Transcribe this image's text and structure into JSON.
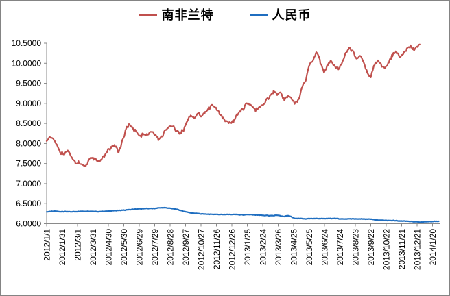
{
  "style": {
    "background": "#FFFFFF",
    "border_color": "#848484",
    "axis_color": "#8A8A8A",
    "text_color": "#000000",
    "series_red": "#C0504D",
    "series_blue": "#1F6EC0"
  },
  "legend": {
    "items": [
      {
        "label": "南非兰特",
        "color": "#C0504D"
      },
      {
        "label": "人民币",
        "color": "#1F6EC0"
      }
    ]
  },
  "chart_data": {
    "type": "line",
    "title": "",
    "legend_position": "top",
    "grid": false,
    "ylim": [
      6.0,
      10.5
    ],
    "y_tick_step": 0.5,
    "y_tick_labels": [
      "10.5000",
      "10.0000",
      "9.5000",
      "9.0000",
      "8.5000",
      "8.0000",
      "7.5000",
      "7.0000",
      "6.5000",
      "6.0000"
    ],
    "x_tick_labels": [
      "2012/1/1",
      "2012/1/31",
      "2012/3/1",
      "2012/3/31",
      "2012/4/30",
      "2012/5/30",
      "2012/6/29",
      "2012/7/29",
      "2012/8/28",
      "2012/9/27",
      "2012/10/27",
      "2012/11/26",
      "2012/12/26",
      "2013/1/25",
      "2013/2/24",
      "2013/3/26",
      "2013/4/25",
      "2013/5/25",
      "2013/6/24",
      "2013/7/24",
      "2013/8/23",
      "2013/9/22",
      "2013/10/22",
      "2013/11/21",
      "2013/12/21",
      "2014/1/20"
    ],
    "x_days_per_tick": 30,
    "x_unit": "days since 2012/1/1",
    "series": [
      {
        "name": "南非兰特",
        "color": "#C0504D",
        "points": [
          [
            0,
            8.1
          ],
          [
            7,
            8.17
          ],
          [
            14,
            8.06
          ],
          [
            21,
            7.93
          ],
          [
            28,
            7.76
          ],
          [
            35,
            7.74
          ],
          [
            42,
            7.8
          ],
          [
            49,
            7.68
          ],
          [
            56,
            7.5
          ],
          [
            63,
            7.54
          ],
          [
            70,
            7.48
          ],
          [
            77,
            7.46
          ],
          [
            84,
            7.66
          ],
          [
            91,
            7.62
          ],
          [
            98,
            7.6
          ],
          [
            105,
            7.56
          ],
          [
            112,
            7.7
          ],
          [
            119,
            7.82
          ],
          [
            126,
            7.91
          ],
          [
            133,
            7.95
          ],
          [
            140,
            7.78
          ],
          [
            147,
            8.05
          ],
          [
            154,
            8.35
          ],
          [
            161,
            8.47
          ],
          [
            168,
            8.37
          ],
          [
            175,
            8.28
          ],
          [
            182,
            8.18
          ],
          [
            189,
            8.25
          ],
          [
            196,
            8.23
          ],
          [
            203,
            8.3
          ],
          [
            210,
            8.22
          ],
          [
            217,
            8.11
          ],
          [
            224,
            8.17
          ],
          [
            231,
            8.33
          ],
          [
            238,
            8.41
          ],
          [
            245,
            8.44
          ],
          [
            252,
            8.29
          ],
          [
            259,
            8.26
          ],
          [
            266,
            8.34
          ],
          [
            273,
            8.56
          ],
          [
            280,
            8.71
          ],
          [
            287,
            8.64
          ],
          [
            294,
            8.74
          ],
          [
            301,
            8.69
          ],
          [
            308,
            8.77
          ],
          [
            315,
            8.87
          ],
          [
            322,
            8.94
          ],
          [
            329,
            8.87
          ],
          [
            336,
            8.74
          ],
          [
            343,
            8.62
          ],
          [
            350,
            8.54
          ],
          [
            357,
            8.5
          ],
          [
            364,
            8.56
          ],
          [
            371,
            8.72
          ],
          [
            378,
            8.81
          ],
          [
            385,
            8.92
          ],
          [
            392,
            9.02
          ],
          [
            399,
            8.91
          ],
          [
            406,
            8.84
          ],
          [
            413,
            8.88
          ],
          [
            420,
            8.96
          ],
          [
            427,
            9.08
          ],
          [
            434,
            9.18
          ],
          [
            441,
            9.28
          ],
          [
            448,
            9.21
          ],
          [
            455,
            9.27
          ],
          [
            462,
            9.07
          ],
          [
            469,
            9.17
          ],
          [
            476,
            9.11
          ],
          [
            483,
            9.01
          ],
          [
            490,
            9.08
          ],
          [
            497,
            9.4
          ],
          [
            504,
            9.6
          ],
          [
            511,
            9.95
          ],
          [
            518,
            10.1
          ],
          [
            525,
            10.28
          ],
          [
            532,
            10.02
          ],
          [
            539,
            9.8
          ],
          [
            546,
            9.95
          ],
          [
            553,
            10.05
          ],
          [
            560,
            9.9
          ],
          [
            567,
            9.85
          ],
          [
            574,
            10.0
          ],
          [
            581,
            10.27
          ],
          [
            588,
            10.38
          ],
          [
            595,
            10.28
          ],
          [
            602,
            10.12
          ],
          [
            609,
            10.18
          ],
          [
            616,
            10.03
          ],
          [
            623,
            9.8
          ],
          [
            630,
            9.63
          ],
          [
            637,
            9.97
          ],
          [
            644,
            10.08
          ],
          [
            651,
            9.95
          ],
          [
            658,
            9.86
          ],
          [
            665,
            10.03
          ],
          [
            672,
            10.2
          ],
          [
            679,
            10.3
          ],
          [
            686,
            10.15
          ],
          [
            693,
            10.24
          ],
          [
            700,
            10.34
          ],
          [
            707,
            10.43
          ],
          [
            714,
            10.34
          ],
          [
            721,
            10.4
          ],
          [
            725,
            10.47
          ]
        ]
      },
      {
        "name": "人民币",
        "color": "#1F6EC0",
        "points": [
          [
            0,
            6.3
          ],
          [
            14,
            6.31
          ],
          [
            28,
            6.3
          ],
          [
            42,
            6.3
          ],
          [
            56,
            6.3
          ],
          [
            70,
            6.31
          ],
          [
            84,
            6.31
          ],
          [
            98,
            6.3
          ],
          [
            112,
            6.31
          ],
          [
            126,
            6.32
          ],
          [
            140,
            6.33
          ],
          [
            154,
            6.34
          ],
          [
            168,
            6.36
          ],
          [
            182,
            6.37
          ],
          [
            196,
            6.38
          ],
          [
            210,
            6.38
          ],
          [
            224,
            6.4
          ],
          [
            238,
            6.39
          ],
          [
            252,
            6.36
          ],
          [
            266,
            6.31
          ],
          [
            280,
            6.27
          ],
          [
            294,
            6.25
          ],
          [
            308,
            6.24
          ],
          [
            322,
            6.23
          ],
          [
            336,
            6.23
          ],
          [
            350,
            6.23
          ],
          [
            364,
            6.23
          ],
          [
            378,
            6.22
          ],
          [
            392,
            6.23
          ],
          [
            406,
            6.22
          ],
          [
            420,
            6.21
          ],
          [
            434,
            6.2
          ],
          [
            448,
            6.21
          ],
          [
            462,
            6.18
          ],
          [
            469,
            6.2
          ],
          [
            476,
            6.17
          ],
          [
            483,
            6.13
          ],
          [
            490,
            6.13
          ],
          [
            504,
            6.12
          ],
          [
            518,
            6.13
          ],
          [
            532,
            6.13
          ],
          [
            546,
            6.13
          ],
          [
            560,
            6.13
          ],
          [
            574,
            6.12
          ],
          [
            588,
            6.12
          ],
          [
            602,
            6.12
          ],
          [
            616,
            6.12
          ],
          [
            630,
            6.11
          ],
          [
            644,
            6.09
          ],
          [
            658,
            6.08
          ],
          [
            672,
            6.08
          ],
          [
            686,
            6.07
          ],
          [
            700,
            6.06
          ],
          [
            714,
            6.05
          ],
          [
            728,
            6.04
          ],
          [
            742,
            6.05
          ],
          [
            756,
            6.06
          ],
          [
            762,
            6.06
          ]
        ]
      }
    ]
  }
}
